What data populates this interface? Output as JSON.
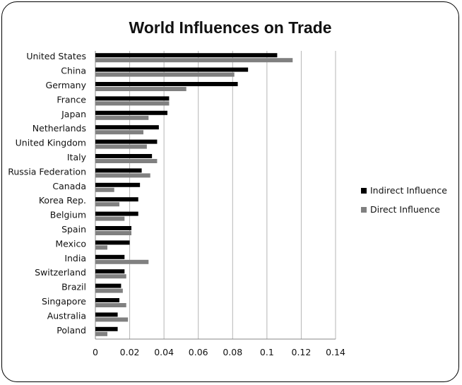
{
  "chart_data": {
    "type": "bar",
    "orientation": "horizontal",
    "title": "World Influences on Trade",
    "categories": [
      "United States",
      "China",
      "Germany",
      "France",
      "Japan",
      "Netherlands",
      "United Kingdom",
      "Italy",
      "Russia Federation",
      "Canada",
      "Korea Rep.",
      "Belgium",
      "Spain",
      "Mexico",
      "India",
      "Switzerland",
      "Brazil",
      "Singapore",
      "Australia",
      "Poland"
    ],
    "series": [
      {
        "name": "Indirect Influence",
        "color": "#000000",
        "values": [
          0.106,
          0.089,
          0.083,
          0.043,
          0.042,
          0.037,
          0.036,
          0.033,
          0.027,
          0.026,
          0.025,
          0.025,
          0.021,
          0.02,
          0.017,
          0.017,
          0.015,
          0.014,
          0.013,
          0.013
        ]
      },
      {
        "name": "Direct Influence",
        "color": "#808080",
        "values": [
          0.115,
          0.081,
          0.053,
          0.043,
          0.031,
          0.028,
          0.03,
          0.036,
          0.032,
          0.011,
          0.014,
          0.017,
          0.021,
          0.007,
          0.031,
          0.018,
          0.016,
          0.018,
          0.019,
          0.007
        ]
      }
    ],
    "xlim": [
      0,
      0.14
    ],
    "xticks": [
      "0",
      "0.02",
      "0.04",
      "0.06",
      "0.08",
      "0.1",
      "0.12",
      "0.14"
    ],
    "grid": "vertical",
    "legend": "right"
  }
}
